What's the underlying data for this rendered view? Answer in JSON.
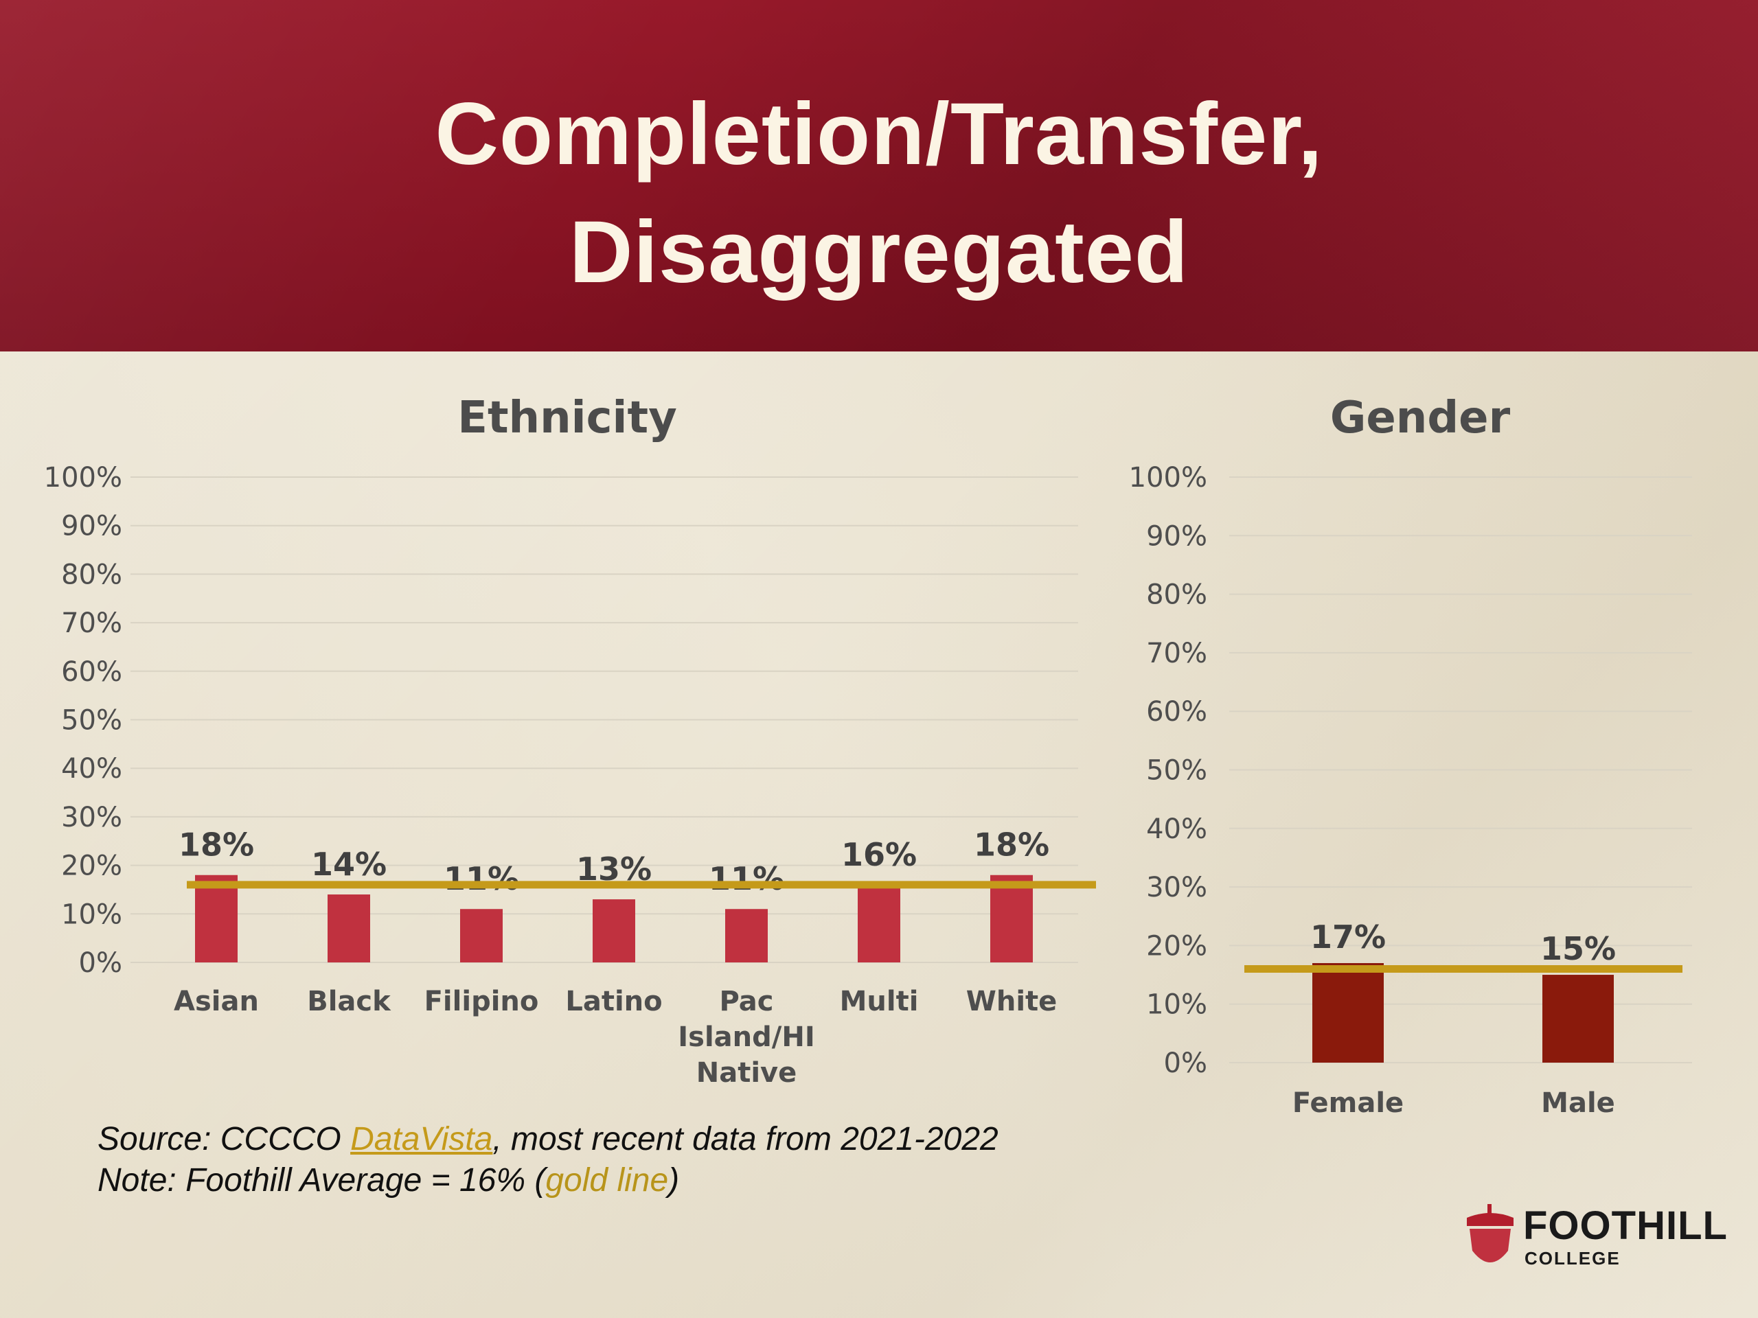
{
  "slide": {
    "title_line1": "Completion/Transfer,",
    "title_line2": "Disaggregated"
  },
  "footnote": {
    "source_prefix": "Source: CCCCO ",
    "source_link": "DataVista",
    "source_suffix": ", most recent data from 2021-2022",
    "note_prefix": "Note: Foothill Average = 16% (",
    "note_gold": "gold line",
    "note_suffix": ")"
  },
  "logo": {
    "name": "FOOTHILL",
    "sub": "COLLEGE"
  },
  "colors": {
    "header": "#8a1424",
    "bar_ethnicity": "#c0313f",
    "bar_gender": "#8a1a0c",
    "average_line": "#c59a1a",
    "background": "#ebe4d2"
  },
  "chart_data": [
    {
      "type": "bar",
      "title": "Ethnicity",
      "categories": [
        "Asian",
        "Black",
        "Filipino",
        "Latino",
        "Pac Island/HI Native",
        "Multi",
        "White"
      ],
      "category_lines": [
        [
          "Asian"
        ],
        [
          "Black"
        ],
        [
          "Filipino"
        ],
        [
          "Latino"
        ],
        [
          "Pac",
          "Island/HI",
          "Native"
        ],
        [
          "Multi"
        ],
        [
          "White"
        ]
      ],
      "values": [
        18,
        14,
        11,
        13,
        11,
        16,
        18
      ],
      "value_labels": [
        "18%",
        "14%",
        "11%",
        "13%",
        "11%",
        "16%",
        "18%"
      ],
      "yticks": [
        "0%",
        "10%",
        "20%",
        "30%",
        "40%",
        "50%",
        "60%",
        "70%",
        "80%",
        "90%",
        "100%"
      ],
      "ylim": [
        0,
        100
      ],
      "average": 16,
      "grid": true
    },
    {
      "type": "bar",
      "title": "Gender",
      "categories": [
        "Female",
        "Male"
      ],
      "category_lines": [
        [
          "Female"
        ],
        [
          "Male"
        ]
      ],
      "values": [
        17,
        15
      ],
      "value_labels": [
        "17%",
        "15%"
      ],
      "yticks": [
        "0%",
        "10%",
        "20%",
        "30%",
        "40%",
        "50%",
        "60%",
        "70%",
        "80%",
        "90%",
        "100%"
      ],
      "ylim": [
        0,
        100
      ],
      "average": 16,
      "grid": true
    }
  ]
}
